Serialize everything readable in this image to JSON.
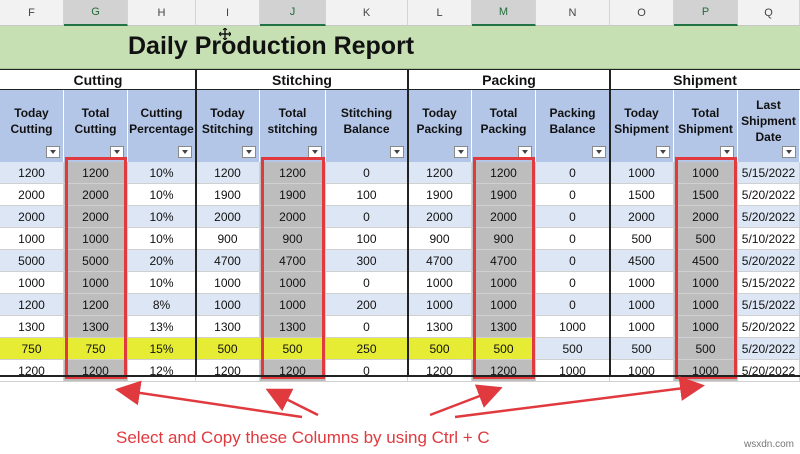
{
  "column_letters": [
    "F",
    "G",
    "H",
    "I",
    "J",
    "K",
    "L",
    "M",
    "N",
    "O",
    "P",
    "Q"
  ],
  "title": "Daily Production Report",
  "groups": [
    "Cutting",
    "Stitching",
    "Packing",
    "Shipment"
  ],
  "headers": [
    [
      "Today",
      "Cutting"
    ],
    [
      "Total",
      "Cutting"
    ],
    [
      "Cutting",
      "Percentage"
    ],
    [
      "Today",
      "Stitching"
    ],
    [
      "Total",
      "stitching"
    ],
    [
      "Stitching",
      "Balance"
    ],
    [
      "Today",
      "Packing"
    ],
    [
      "Total",
      "Packing"
    ],
    [
      "Packing",
      "Balance"
    ],
    [
      "Today",
      "Shipment"
    ],
    [
      "Total",
      "Shipment"
    ],
    [
      "Last",
      "Shipment",
      "Date"
    ]
  ],
  "rows": [
    [
      "1200",
      "1200",
      "10%",
      "1200",
      "1200",
      "0",
      "1200",
      "1200",
      "0",
      "1000",
      "1000",
      "5/15/2022"
    ],
    [
      "2000",
      "2000",
      "10%",
      "1900",
      "1900",
      "100",
      "1900",
      "1900",
      "0",
      "1500",
      "1500",
      "5/20/2022"
    ],
    [
      "2000",
      "2000",
      "10%",
      "2000",
      "2000",
      "0",
      "2000",
      "2000",
      "0",
      "2000",
      "2000",
      "5/20/2022"
    ],
    [
      "1000",
      "1000",
      "10%",
      "900",
      "900",
      "100",
      "900",
      "900",
      "0",
      "500",
      "500",
      "5/10/2022"
    ],
    [
      "5000",
      "5000",
      "20%",
      "4700",
      "4700",
      "300",
      "4700",
      "4700",
      "0",
      "4500",
      "4500",
      "5/20/2022"
    ],
    [
      "1000",
      "1000",
      "10%",
      "1000",
      "1000",
      "0",
      "1000",
      "1000",
      "0",
      "1000",
      "1000",
      "5/15/2022"
    ],
    [
      "1200",
      "1200",
      "8%",
      "1000",
      "1000",
      "200",
      "1000",
      "1000",
      "0",
      "1000",
      "1000",
      "5/15/2022"
    ],
    [
      "1300",
      "1300",
      "13%",
      "1300",
      "1300",
      "0",
      "1300",
      "1300",
      "1000",
      "1000",
      "1000",
      "5/20/2022"
    ],
    [
      "750",
      "750",
      "15%",
      "500",
      "500",
      "250",
      "500",
      "500",
      "500",
      "500",
      "500",
      "5/20/2022"
    ],
    [
      "1200",
      "1200",
      "12%",
      "1200",
      "1200",
      "0",
      "1200",
      "1200",
      "1000",
      "1000",
      "1000",
      "5/20/2022"
    ]
  ],
  "highlight_row_index": 8,
  "caption": "Select and Copy these Columns by using Ctrl + C",
  "watermark": "wsxdn.com",
  "colors": {
    "title_band": "#c6e0b4",
    "header_fill": "#b4c6e7",
    "row_band": "#dde6f4",
    "selected_column": "#bdbdbd",
    "highlight": "#e5ec33",
    "annotation_red": "#e0393e"
  },
  "icons": {
    "cursor": "move-cursor-icon",
    "filter": "filter-dropdown-icon"
  }
}
